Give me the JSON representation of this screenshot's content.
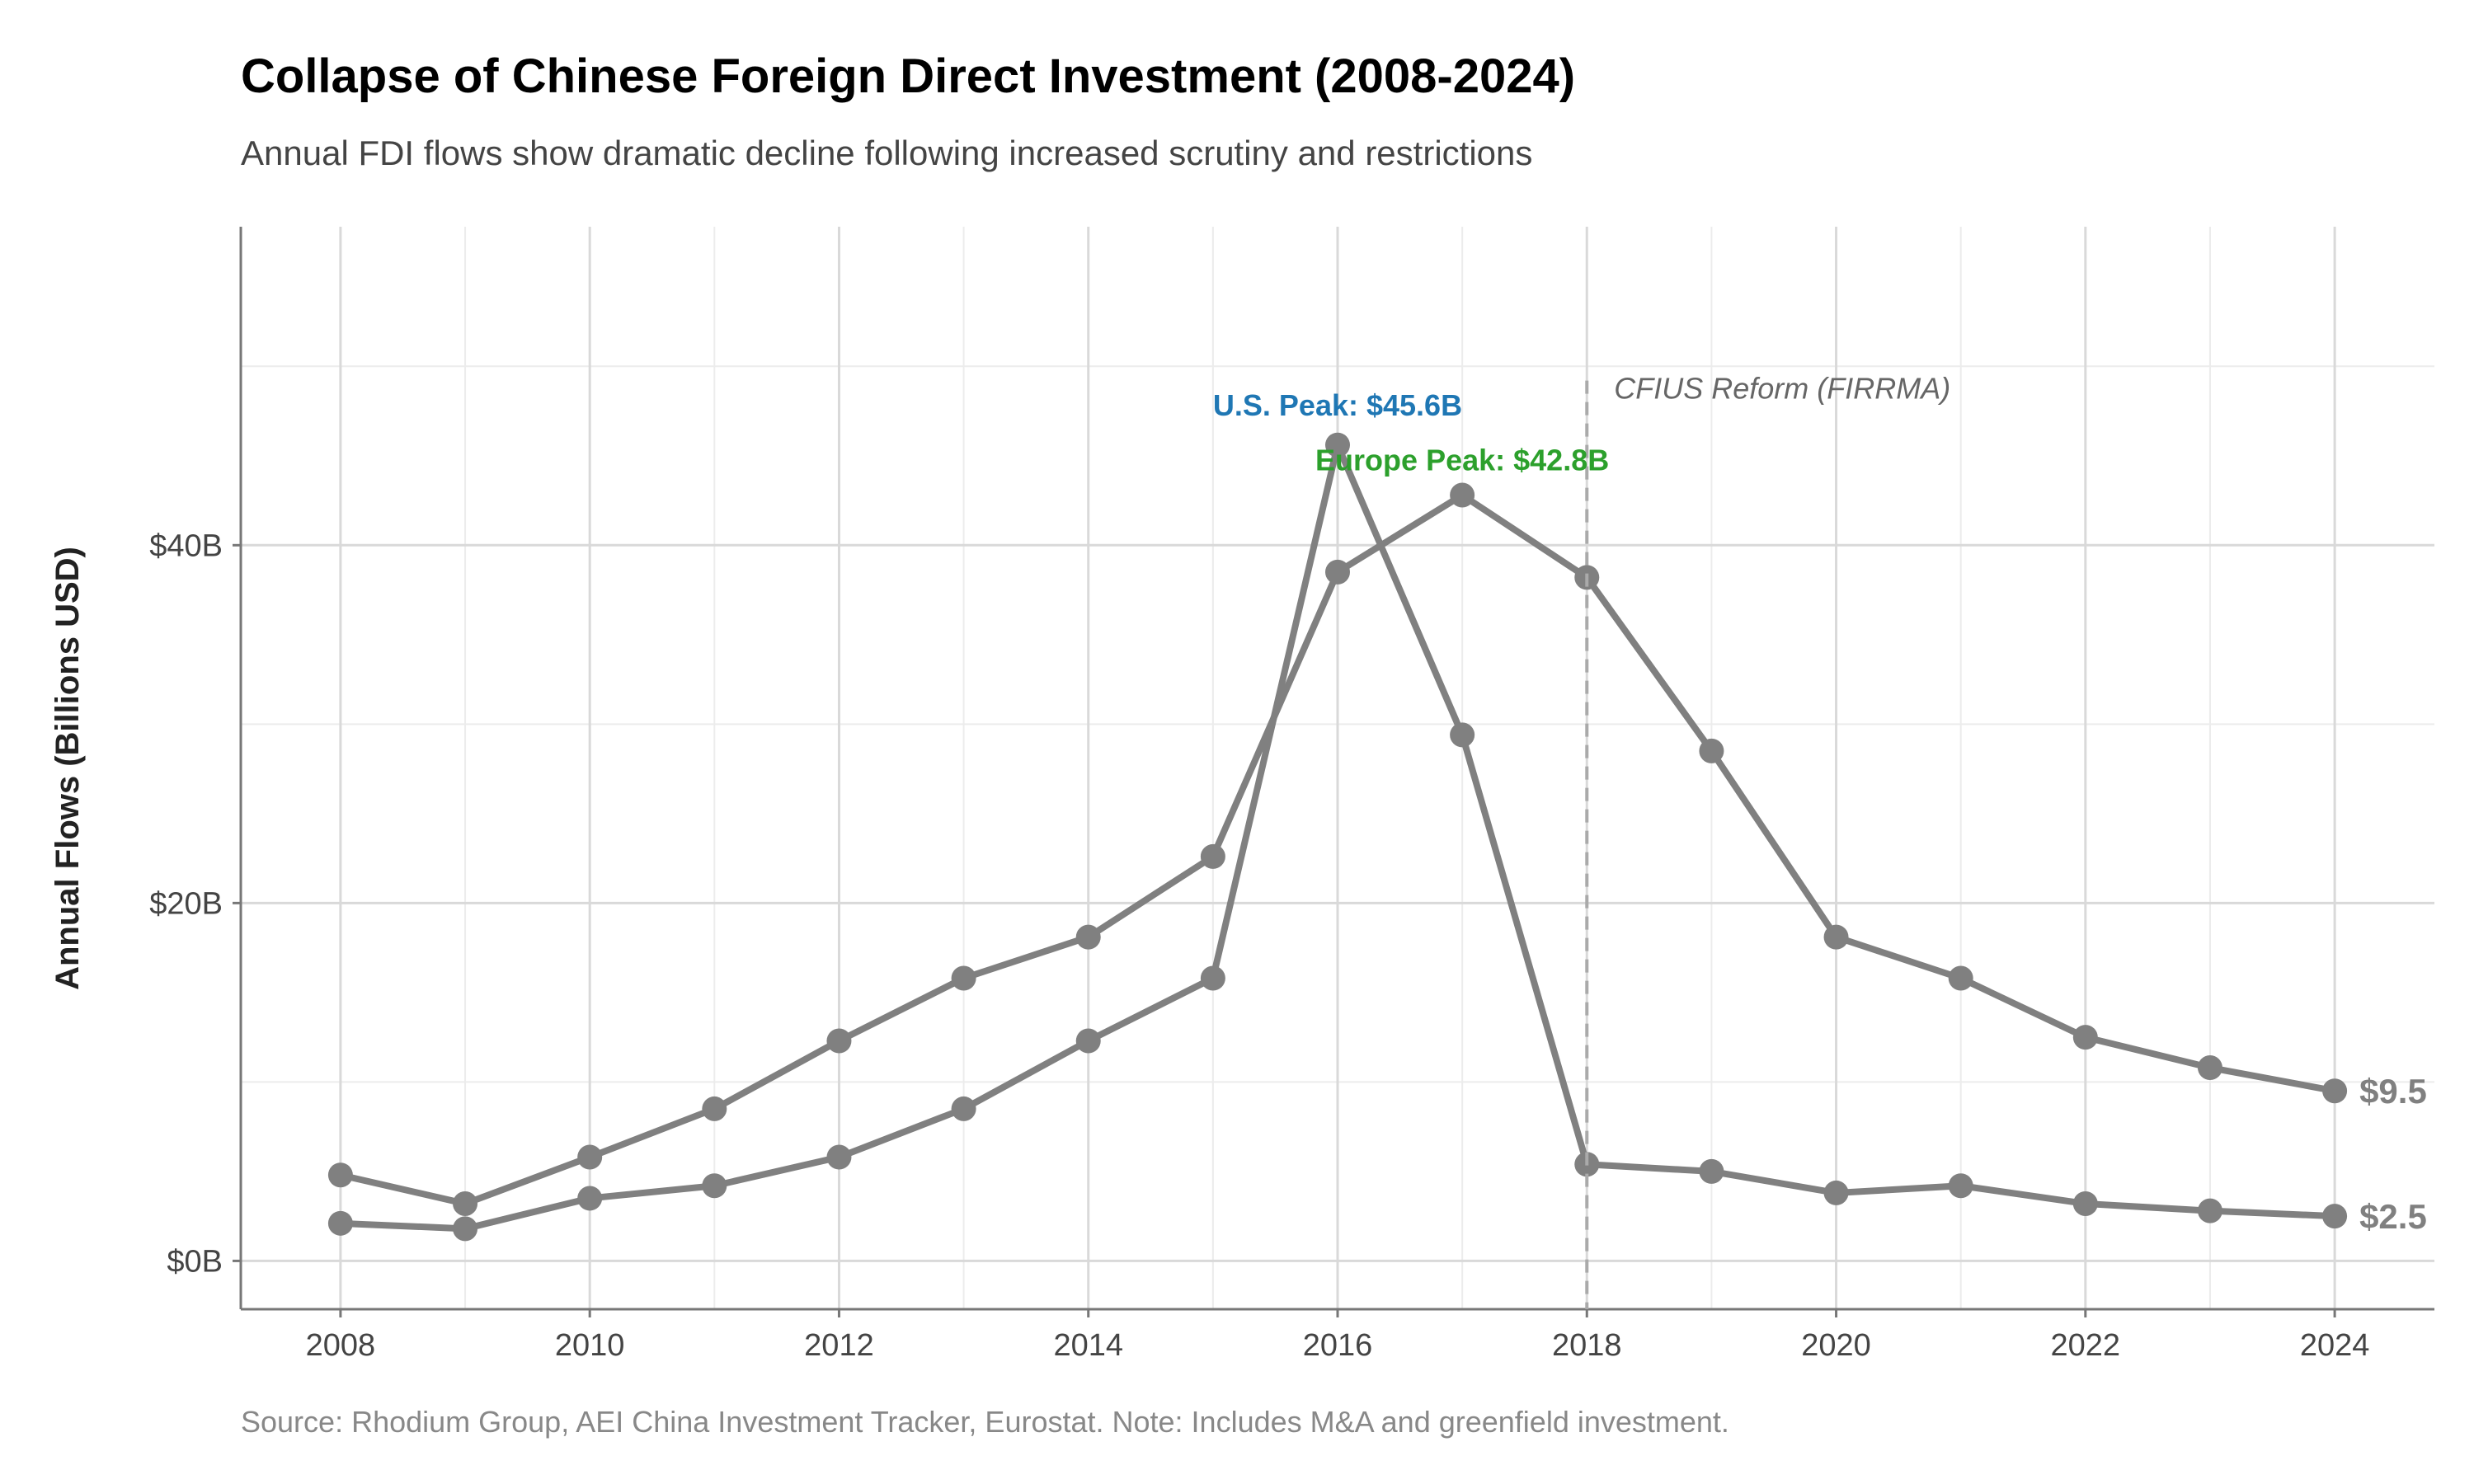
{
  "chart_data": {
    "type": "line",
    "title": "Collapse of Chinese Foreign Direct Investment (2008-2024)",
    "subtitle": "Annual FDI flows show dramatic decline following increased scrutiny and restrictions",
    "xlabel": "",
    "ylabel": "Annual Flows (Billions USD)",
    "caption": "Source: Rhodium Group, AEI China Investment Tracker, Eurostat. Note: Includes M&A and greenfield investment.",
    "xlim": [
      2007.2,
      2024.8
    ],
    "ylim": [
      -2.7,
      57.8
    ],
    "x_ticks": [
      2008,
      2010,
      2012,
      2014,
      2016,
      2018,
      2020,
      2022,
      2024
    ],
    "x_tick_labels": [
      "2008",
      "2010",
      "2012",
      "2014",
      "2016",
      "2018",
      "2020",
      "2022",
      "2024"
    ],
    "y_ticks": [
      0,
      20,
      40
    ],
    "y_tick_labels": [
      "$0B",
      "$20B",
      "$40B"
    ],
    "y_minor_ticks": [
      10,
      30,
      50
    ],
    "grid": true,
    "line_color": "#808080",
    "x": [
      2008,
      2009,
      2010,
      2011,
      2012,
      2013,
      2014,
      2015,
      2016,
      2017,
      2018,
      2019,
      2020,
      2021,
      2022,
      2023,
      2024
    ],
    "series": [
      {
        "values": [
          2.1,
          1.8,
          3.5,
          4.2,
          5.8,
          8.5,
          12.3,
          15.8,
          45.6,
          29.4,
          5.4,
          5.0,
          3.8,
          4.2,
          3.2,
          2.8,
          2.5
        ],
        "end_label": "$2.5"
      },
      {
        "values": [
          4.8,
          3.2,
          5.8,
          8.5,
          12.3,
          15.8,
          18.1,
          22.6,
          38.5,
          42.8,
          38.2,
          28.5,
          18.1,
          15.8,
          12.5,
          10.8,
          9.5
        ],
        "end_label": "$9.5"
      }
    ],
    "annotations": [
      {
        "text": "U.S. Peak: $45.6B",
        "x": 2016,
        "y": 45.6,
        "color": "#1f77b4"
      },
      {
        "text": "Europe Peak: $42.8B",
        "x": 2017,
        "y": 42.8,
        "color": "#2ca02c"
      },
      {
        "text": "CFIUS Reform (FIRRMA)",
        "x": 2018,
        "color": "#666666"
      }
    ],
    "reference_line": {
      "x": 2018,
      "style": "dashed"
    }
  }
}
